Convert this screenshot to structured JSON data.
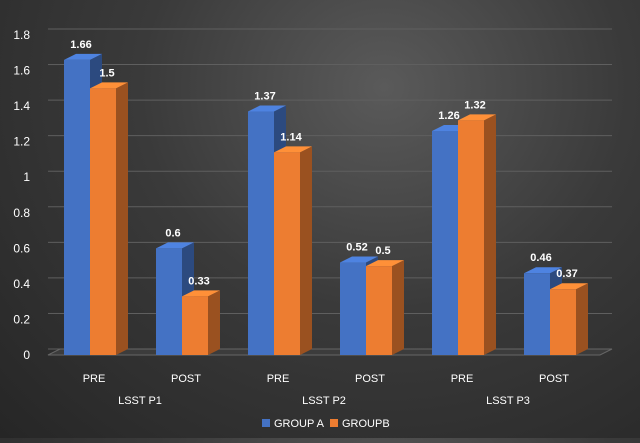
{
  "chart_data": {
    "type": "bar",
    "title": "",
    "xlabel": "",
    "ylabel": "",
    "ylim": [
      0,
      1.8
    ],
    "yticks": [
      "0",
      "0.2",
      "0.4",
      "0.6",
      "0.8",
      "1",
      "1.2",
      "1.4",
      "1.6",
      "1.8"
    ],
    "grid": true,
    "categories": [
      "PRE",
      "POST",
      "PRE",
      "POST",
      "PRE",
      "POST"
    ],
    "groups": [
      "LSST P1",
      "LSST P2",
      "LSST P3"
    ],
    "series": [
      {
        "name": "GROUP A",
        "color": "#4472C4",
        "values": [
          1.66,
          0.6,
          1.37,
          0.52,
          1.26,
          0.46
        ],
        "labels": [
          "1.66",
          "0.6",
          "1.37",
          "0.52",
          "1.26",
          "0.46"
        ]
      },
      {
        "name": "GROUPB",
        "color": "#ED7D31",
        "values": [
          1.5,
          0.33,
          1.14,
          0.5,
          1.32,
          0.37
        ],
        "labels": [
          "1.5",
          "0.33",
          "1.14",
          "0.5",
          "1.32",
          "0.37"
        ]
      }
    ],
    "legend_position": "bottom-center"
  }
}
